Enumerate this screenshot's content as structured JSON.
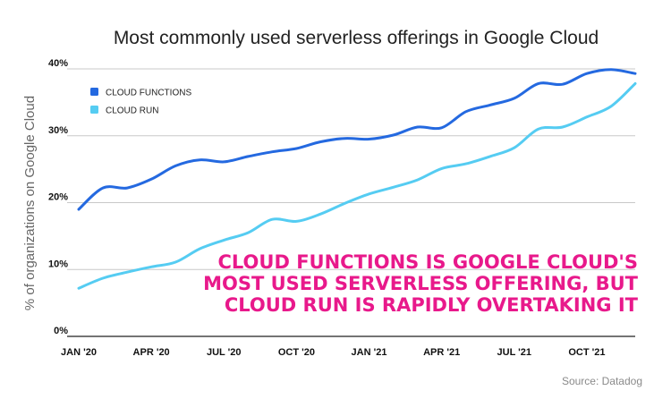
{
  "chart_data": {
    "type": "line",
    "title": "Most commonly used serverless offerings in Google Cloud",
    "ylabel": "% of organizations on Google Cloud",
    "xlabel": "",
    "x": [
      "2020-01",
      "2020-02",
      "2020-03",
      "2020-04",
      "2020-05",
      "2020-06",
      "2020-07",
      "2020-08",
      "2020-09",
      "2020-10",
      "2020-11",
      "2020-12",
      "2021-01",
      "2021-02",
      "2021-03",
      "2021-04",
      "2021-05",
      "2021-06",
      "2021-07",
      "2021-08",
      "2021-09",
      "2021-10",
      "2021-11",
      "2021-12"
    ],
    "x_tick_labels": [
      "JAN '20",
      "APR '20",
      "JUL '20",
      "OCT '20",
      "JAN '21",
      "APR '21",
      "JUL '21",
      "OCT '21"
    ],
    "y_tick_labels": [
      "0%",
      "10%",
      "20%",
      "30%",
      "40%"
    ],
    "ylim": [
      0,
      40
    ],
    "grid": true,
    "legend_position": "top-left",
    "series": [
      {
        "name": "CLOUD FUNCTIONS",
        "color": "#2469e0",
        "values": [
          19,
          22.2,
          22.2,
          23.5,
          25.5,
          26.4,
          26.1,
          26.9,
          27.6,
          28.1,
          29.1,
          29.6,
          29.5,
          30.1,
          31.3,
          31.2,
          33.6,
          34.6,
          35.6,
          37.8,
          37.7,
          39.3,
          39.9,
          39.3
        ]
      },
      {
        "name": "CLOUD RUN",
        "color": "#55ccf2",
        "values": [
          7.2,
          8.7,
          9.6,
          10.4,
          11.1,
          13.1,
          14.4,
          15.5,
          17.5,
          17.2,
          18.3,
          19.9,
          21.3,
          22.3,
          23.4,
          25.1,
          25.8,
          26.9,
          28.2,
          31.0,
          31.3,
          32.8,
          34.4,
          37.8
        ]
      }
    ],
    "annotation": [
      "CLOUD FUNCTIONS IS GOOGLE CLOUD'S",
      "MOST USED SERVERLESS OFFERING, BUT",
      "CLOUD RUN IS RAPIDLY OVERTAKING IT"
    ],
    "source": "Source: Datadog"
  }
}
